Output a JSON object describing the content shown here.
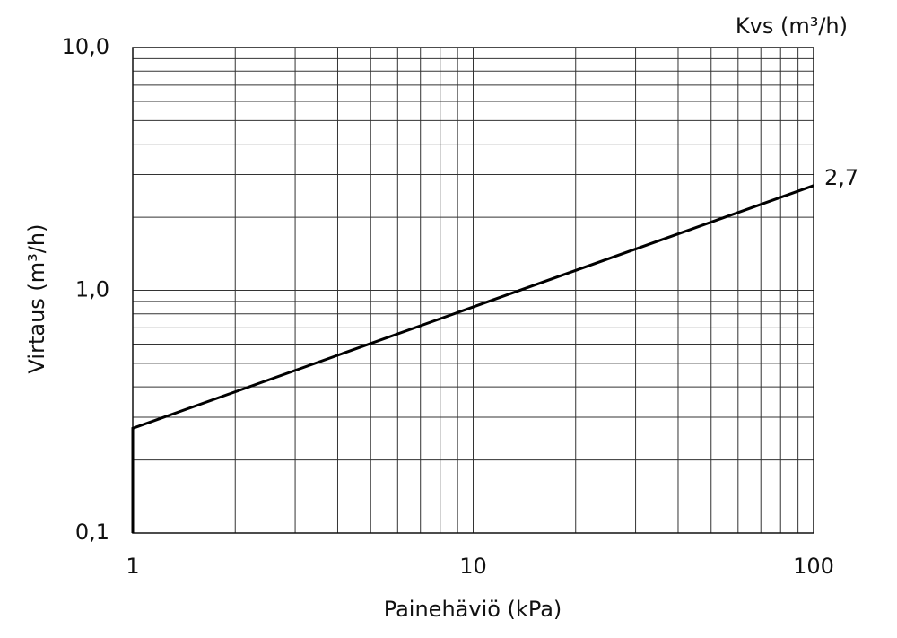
{
  "chart_data": {
    "type": "line",
    "annotation": "Kvs (m³/h)",
    "xlabel": "Painehäviö (kPa)",
    "ylabel": "Virtaus (m³/h)",
    "x": [
      1,
      1,
      100
    ],
    "series": [
      {
        "name": "Kvs",
        "color": "#000000",
        "values": [
          0.1,
          0.27,
          2.7
        ],
        "value_labels": [
          null,
          null,
          "2,7"
        ]
      }
    ],
    "xscale": "log",
    "yscale": "log",
    "xlim": [
      1,
      100
    ],
    "ylim": [
      0.1,
      10
    ],
    "xticks": [
      1,
      10,
      100
    ],
    "yticks": [
      {
        "value": 0.1,
        "label": "0,1"
      },
      {
        "value": 1,
        "label": "1,0"
      },
      {
        "value": 10,
        "label": "10,0"
      }
    ],
    "x_minor_grid": [
      2,
      3,
      4,
      5,
      6,
      7,
      8,
      9,
      20,
      30,
      40,
      50,
      60,
      70,
      80,
      90
    ],
    "y_minor_grid": [
      0.2,
      0.3,
      0.4,
      0.5,
      0.6,
      0.7,
      0.8,
      0.9,
      2,
      3,
      4,
      5,
      6,
      7,
      8,
      9
    ],
    "grid": true
  }
}
